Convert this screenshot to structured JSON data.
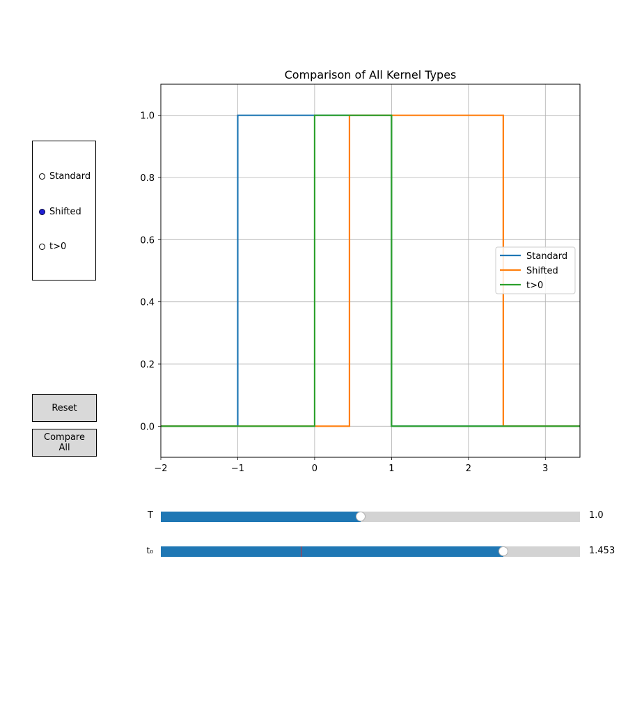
{
  "chart_data": {
    "type": "line",
    "title": "Comparison of All Kernel Types",
    "xlabel": "",
    "ylabel": "",
    "xlim": [
      -2,
      3.45
    ],
    "ylim": [
      -0.1,
      1.1
    ],
    "xticks": [
      "−2",
      "−1",
      "0",
      "1",
      "2",
      "3"
    ],
    "xtick_values": [
      -2,
      -1,
      0,
      1,
      2,
      3
    ],
    "yticks": [
      "0.0",
      "0.2",
      "0.4",
      "0.6",
      "0.8",
      "1.0"
    ],
    "ytick_values": [
      0.0,
      0.2,
      0.4,
      0.6,
      0.8,
      1.0
    ],
    "grid": true,
    "legend_position": "center-right",
    "series": [
      {
        "name": "Standard",
        "color": "#1f77b4",
        "x": [
          -2,
          -1,
          -1,
          1,
          1,
          3.45
        ],
        "y": [
          0,
          0,
          1,
          1,
          0,
          0
        ]
      },
      {
        "name": "Shifted",
        "color": "#ff7f0e",
        "x": [
          -2,
          0.453,
          0.453,
          2.453,
          2.453,
          3.45
        ],
        "y": [
          0,
          0,
          1,
          1,
          0,
          0
        ]
      },
      {
        "name": "t>0",
        "color": "#2ca02c",
        "x": [
          -2,
          0,
          0,
          1,
          1,
          3.45
        ],
        "y": [
          0,
          0,
          1,
          1,
          0,
          0
        ]
      }
    ]
  },
  "radio": {
    "options": [
      "Standard",
      "Shifted",
      "t>0"
    ],
    "selected": "Shifted"
  },
  "buttons": {
    "reset_label": "Reset",
    "compare_label": "Compare All"
  },
  "sliders": {
    "T": {
      "label": "T",
      "value_text": "1.0",
      "min": 0.0,
      "max": 2.1,
      "value": 1.0
    },
    "t0": {
      "label": "t₀",
      "value_text": "1.453",
      "min": -1.0,
      "max": 2.0,
      "value": 1.453,
      "valinit": 0.0
    }
  }
}
